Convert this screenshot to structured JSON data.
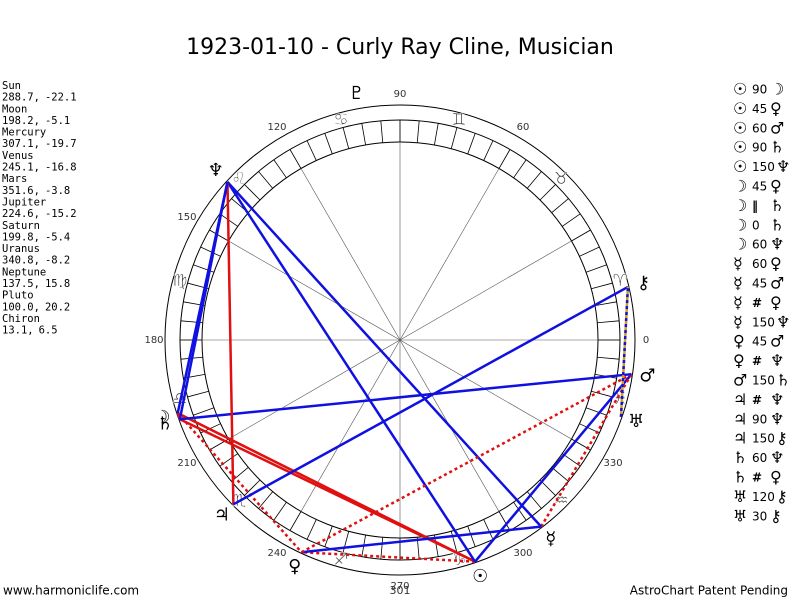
{
  "title": "1923-01-10 - Curly Ray Cline, Musician",
  "planets": [
    {
      "name": "Sun",
      "symbol": "☉",
      "lon": {
        "value": 288.7,
        "label": "288.7,"
      },
      "lat": -22.1
    },
    {
      "name": "Moon",
      "symbol": "☽",
      "lon": {
        "value": 198.2,
        "label": "198.2,"
      },
      "lat": -5.1
    },
    {
      "name": "Mercury",
      "symbol": "☿",
      "lon": {
        "value": 307.1,
        "label": "307.1,"
      },
      "lat": -19.7
    },
    {
      "name": "Venus",
      "symbol": "♀",
      "lon": {
        "value": 245.1,
        "label": "245.1,"
      },
      "lat": -16.8
    },
    {
      "name": "Mars",
      "symbol": "♂",
      "lon": {
        "value": 351.6,
        "label": "351.6,"
      },
      "lat": -3.8
    },
    {
      "name": "Jupiter",
      "symbol": "♃",
      "lon": {
        "value": 224.6,
        "label": "224.6,"
      },
      "lat": -15.2
    },
    {
      "name": "Saturn",
      "symbol": "♄",
      "lon": {
        "value": 199.8,
        "label": "199.8,"
      },
      "lat": -5.4
    },
    {
      "name": "Uranus",
      "symbol": "♅",
      "lon": {
        "value": 340.8,
        "label": "340.8,"
      },
      "lat": -8.2
    },
    {
      "name": "Neptune",
      "symbol": "♆",
      "lon": {
        "value": 137.5,
        "label": "137.5,"
      },
      "lat": 15.8
    },
    {
      "name": "Pluto",
      "symbol": "♇",
      "lon": {
        "value": 100.0,
        "label": "100.0,"
      },
      "lat": 20.2
    },
    {
      "name": "Chiron",
      "symbol": "⚷",
      "lon": {
        "value": 13.1,
        "label": "13.1,"
      },
      "lat": 6.5
    }
  ],
  "signs": [
    "♈",
    "♉",
    "♊",
    "♋",
    "♌",
    "♍",
    "♎",
    "♏",
    "♐",
    "♑",
    "♒",
    "♓"
  ],
  "degree_labels": [
    0,
    60,
    90,
    120,
    150,
    180,
    210,
    240,
    270,
    300,
    330
  ],
  "bottom_label": "301",
  "aspect_styles": {
    "0": {
      "color": "#e01010"
    },
    "90": {
      "color": "#e01010"
    },
    "45": {
      "color": "#e01010",
      "dash": "3,3"
    },
    "60": {
      "color": "#1010e0"
    },
    "150": {
      "color": "#1010e0"
    },
    "30": {
      "color": "#1010e0",
      "dash": "3,3"
    },
    "120": {
      "color": "#d4a020"
    }
  },
  "aspects": [
    {
      "a": "☉",
      "type": "90",
      "b": "☽"
    },
    {
      "a": "☉",
      "type": "45",
      "b": "♀"
    },
    {
      "a": "☉",
      "type": "60",
      "b": "♂"
    },
    {
      "a": "☉",
      "type": "90",
      "b": "♄"
    },
    {
      "a": "☉",
      "type": "150",
      "b": "♆"
    },
    {
      "a": "☽",
      "type": "45",
      "b": "♀"
    },
    {
      "a": "☽",
      "type": "‖",
      "b": "♄"
    },
    {
      "a": "☽",
      "type": "0",
      "b": "♄"
    },
    {
      "a": "☽",
      "type": "60",
      "b": "♆"
    },
    {
      "a": "☿",
      "type": "60",
      "b": "♀"
    },
    {
      "a": "☿",
      "type": "45",
      "b": "♂"
    },
    {
      "a": "☿",
      "type": "#",
      "b": "♀"
    },
    {
      "a": "☿",
      "type": "150",
      "b": "♆"
    },
    {
      "a": "♀",
      "type": "45",
      "b": "♂"
    },
    {
      "a": "♀",
      "type": "#",
      "b": "♆"
    },
    {
      "a": "♂",
      "type": "150",
      "b": "♄"
    },
    {
      "a": "♃",
      "type": "#",
      "b": "♆"
    },
    {
      "a": "♃",
      "type": "90",
      "b": "♆"
    },
    {
      "a": "♃",
      "type": "150",
      "b": "⚷"
    },
    {
      "a": "♄",
      "type": "60",
      "b": "♆"
    },
    {
      "a": "♄",
      "type": "#",
      "b": "♀"
    },
    {
      "a": "♅",
      "type": "120",
      "b": "⚷"
    },
    {
      "a": "♅",
      "type": "30",
      "b": "⚷"
    }
  ],
  "footer": {
    "left": "www.harmoniclife.com",
    "right": "AstroChart Patent Pending"
  }
}
